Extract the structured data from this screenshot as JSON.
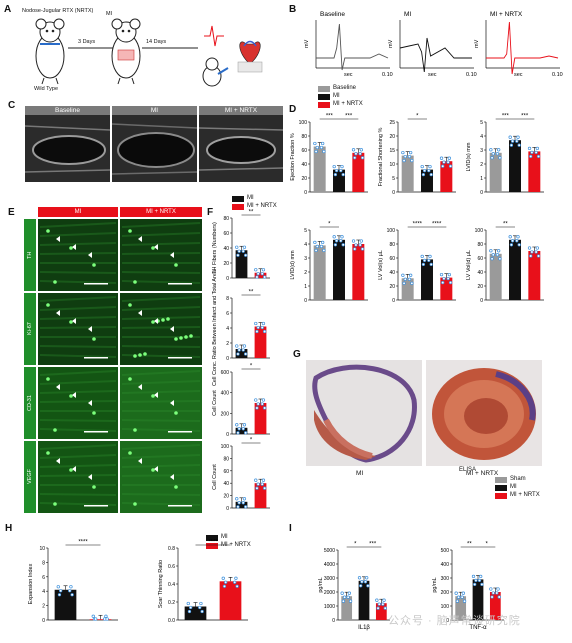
{
  "panels": {
    "A": "A",
    "B": "B",
    "C": "C",
    "D": "D",
    "E": "E",
    "F": "F",
    "G": "G",
    "H": "H",
    "I": "I"
  },
  "A": {
    "title": "Nodose-Jugular RTX (NRTX)",
    "mi": "MI",
    "days3": "3 Days",
    "days14": "14 Days",
    "wild_type": "Wild Type"
  },
  "B": {
    "titles": [
      "Baseline",
      "MI",
      "MI + NRTX"
    ],
    "ylabel": "mV",
    "xlabel": "sec",
    "xmax": "0.10"
  },
  "C": {
    "headers": [
      "Baseline",
      "MI",
      "MI + NRTX"
    ]
  },
  "legend3": {
    "items": [
      "Baseline",
      "MI",
      "MI + NRTX"
    ],
    "colors": [
      "#9a9a9a",
      "#111111",
      "#e8101a"
    ]
  },
  "legend2": {
    "items": [
      "MI",
      "MI + NRTX"
    ],
    "colors": [
      "#111111",
      "#e8101a"
    ]
  },
  "legend_sham": {
    "title": "ELISA",
    "items": [
      "Sham",
      "MI",
      "MI + NRTX"
    ],
    "colors": [
      "#9a9a9a",
      "#111111",
      "#e8101a"
    ]
  },
  "E": {
    "headers": [
      "MI",
      "MI + NRTX"
    ],
    "rows": [
      "TH",
      "Ki-67",
      "CD-31",
      "VEGF"
    ]
  },
  "G": {
    "labels": [
      "MI",
      "MI + NRTX"
    ]
  },
  "chart_data": [
    {
      "id": "D1",
      "type": "bar",
      "ylabel": "Ejection Fraction %",
      "categories": [
        "Baseline",
        "MI",
        "MI + NRTX"
      ],
      "values": [
        65,
        32,
        56
      ],
      "ylim": [
        0,
        100
      ],
      "yticks": [
        "0",
        "20",
        "40",
        "60",
        "80",
        "100"
      ],
      "sig": [
        "***",
        "***"
      ]
    },
    {
      "id": "D2",
      "type": "bar",
      "ylabel": "Fractional Shortening %",
      "categories": [
        "Baseline",
        "MI",
        "MI + NRTX"
      ],
      "values": [
        13,
        8,
        11
      ],
      "ylim": [
        0,
        25
      ],
      "yticks": [
        "0",
        "5",
        "10",
        "15",
        "20",
        "25"
      ],
      "sig": [
        "*"
      ]
    },
    {
      "id": "D3",
      "type": "bar",
      "ylabel": "LVID(s) mm",
      "categories": [
        "Baseline",
        "MI",
        "MI + NRTX"
      ],
      "values": [
        2.8,
        3.7,
        2.9
      ],
      "ylim": [
        0,
        5
      ],
      "yticks": [
        "0",
        "1",
        "2",
        "3",
        "4",
        "5"
      ],
      "sig": [
        "***",
        "***"
      ]
    },
    {
      "id": "D4",
      "type": "bar",
      "ylabel": "LVID(d) mm",
      "categories": [
        "Baseline",
        "MI",
        "MI + NRTX"
      ],
      "values": [
        3.9,
        4.3,
        4.0
      ],
      "ylim": [
        0,
        5
      ],
      "yticks": [
        "0",
        "1",
        "2",
        "3",
        "4",
        "5"
      ],
      "sig": [
        "*"
      ]
    },
    {
      "id": "D5",
      "type": "bar",
      "ylabel": "LV Vol(s) µL",
      "categories": [
        "Baseline",
        "MI",
        "MI + NRTX"
      ],
      "values": [
        31,
        58,
        32
      ],
      "ylim": [
        0,
        100
      ],
      "yticks": [
        "0",
        "20",
        "40",
        "60",
        "80",
        "100"
      ],
      "sig": [
        "****",
        "****"
      ]
    },
    {
      "id": "D6",
      "type": "bar",
      "ylabel": "LV Vol(d) µL",
      "categories": [
        "Baseline",
        "MI",
        "MI + NRTX"
      ],
      "values": [
        66,
        86,
        70
      ],
      "ylim": [
        0,
        100
      ],
      "yticks": [
        "0",
        "20",
        "40",
        "60",
        "80",
        "100"
      ],
      "sig": [
        "**"
      ]
    },
    {
      "id": "F1",
      "type": "bar",
      "ylabel": "TH Fibers (Numbers)",
      "categories": [
        "MI",
        "MI + NRTX"
      ],
      "values": [
        37,
        7
      ],
      "ylim": [
        0,
        80
      ],
      "yticks": [
        "0",
        "20",
        "40",
        "60",
        "80"
      ],
      "sig": [
        "**"
      ]
    },
    {
      "id": "F2",
      "type": "bar",
      "ylabel": "Cell Conc. Ratio Between Infarct and Total Area",
      "categories": [
        "MI",
        "MI + NRTX"
      ],
      "values": [
        1.2,
        4.2
      ],
      "ylim": [
        0,
        8
      ],
      "yticks": [
        "0",
        "2",
        "4",
        "6",
        "8"
      ],
      "sig": [
        "**"
      ]
    },
    {
      "id": "F3",
      "type": "bar",
      "ylabel": "Cell Count",
      "categories": [
        "MI",
        "MI + NRTX"
      ],
      "values": [
        60,
        300
      ],
      "ylim": [
        0,
        600
      ],
      "yticks": [
        "0",
        "200",
        "400",
        "600"
      ],
      "sig": [
        "*"
      ]
    },
    {
      "id": "F4",
      "type": "bar",
      "ylabel": "Cell Count",
      "categories": [
        "MI",
        "MI + NRTX"
      ],
      "values": [
        10,
        40
      ],
      "ylim": [
        0,
        100
      ],
      "yticks": [
        "0",
        "20",
        "40",
        "60",
        "80",
        "100"
      ],
      "sig": [
        "*"
      ]
    },
    {
      "id": "H1",
      "type": "bar",
      "ylabel": "Expansion Index",
      "categories": [
        "MI",
        "MI + NRTX"
      ],
      "values": [
        4.2,
        0.1
      ],
      "ylim": [
        0,
        10
      ],
      "yticks": [
        "0",
        "2",
        "4",
        "6",
        "8",
        "10"
      ],
      "sig": [
        "****"
      ]
    },
    {
      "id": "H2",
      "type": "bar",
      "ylabel": "Scar Thinning Ratio",
      "categories": [
        "MI",
        "MI + NRTX"
      ],
      "values": [
        0.15,
        0.43
      ],
      "ylim": [
        0,
        0.8
      ],
      "yticks": [
        "0.0",
        "0.2",
        "0.4",
        "0.6",
        "0.8"
      ],
      "sig": [
        "****"
      ]
    },
    {
      "id": "I1",
      "type": "bar",
      "ylabel": "pg/mL",
      "xlabel": "IL1β",
      "categories": [
        "Sham",
        "MI",
        "MI + NRTX"
      ],
      "values": [
        1700,
        2800,
        1200
      ],
      "ylim": [
        0,
        5000
      ],
      "yticks": [
        "0",
        "1000",
        "2000",
        "3000",
        "4000",
        "5000"
      ],
      "sig": [
        "*",
        "***"
      ]
    },
    {
      "id": "I2",
      "type": "bar",
      "ylabel": "pg/mL",
      "xlabel": "TNF-α",
      "categories": [
        "Sham",
        "MI",
        "MI + NRTX"
      ],
      "values": [
        170,
        290,
        200
      ],
      "ylim": [
        0,
        500
      ],
      "yticks": [
        "0",
        "100",
        "200",
        "300",
        "400",
        "500"
      ],
      "sig": [
        "**",
        "*"
      ]
    }
  ],
  "watermark": "公众号 · 脑声常谈研究院"
}
